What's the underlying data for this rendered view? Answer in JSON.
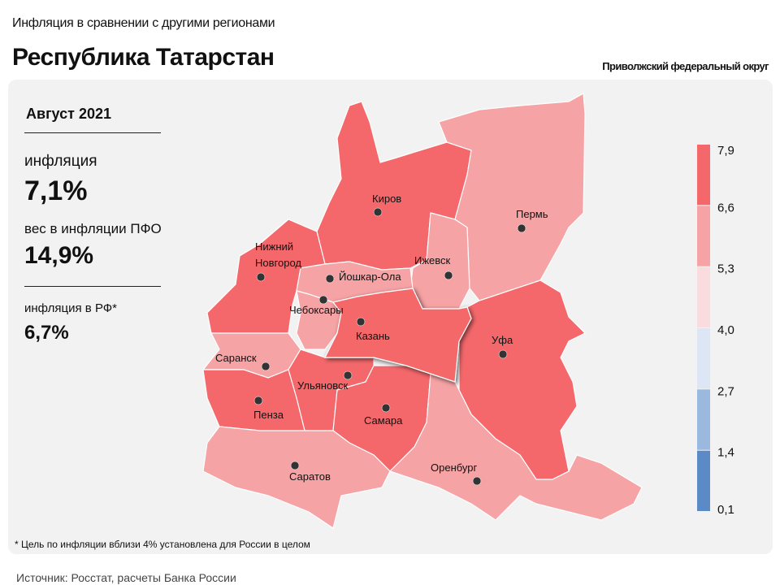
{
  "header": {
    "subtitle": "Инфляция в сравнении с другими регионами",
    "title": "Республика Татарстан",
    "district": "Приволжский федеральный округ"
  },
  "panel": {
    "month": "Август 2021",
    "inflation_label": "инфляция",
    "inflation_value": "7,1%",
    "weight_label": "вес в инфляции ПФО",
    "weight_value": "14,9%",
    "rf_label": "инфляция в РФ*",
    "rf_value": "6,7%"
  },
  "footnote": "* Цель по инфляции вблизи 4% установлена для России в целом",
  "source": "Источник: Росстат, расчеты Банка России",
  "legend": {
    "ticks": [
      "7,9",
      "6,6",
      "5,3",
      "4,0",
      "2,7",
      "1,4",
      "0,1"
    ],
    "colors": [
      "#f4686b",
      "#f6a3a5",
      "#fadcdf",
      "#dce6f4",
      "#9bb8de",
      "#5b8ac6"
    ]
  },
  "map": {
    "highlighted": "Казань",
    "regions": [
      {
        "city": "Киров",
        "color": "#f4686b"
      },
      {
        "city": "Пермь",
        "color": "#f6a3a5"
      },
      {
        "city": "Ижевск",
        "color": "#f6a3a5"
      },
      {
        "city": "Нижний Новгород",
        "color": "#f4686b"
      },
      {
        "city": "Йошкар-Ола",
        "color": "#f6a3a5"
      },
      {
        "city": "Чебоксары",
        "color": "#f6a3a5"
      },
      {
        "city": "Казань",
        "color": "#f4686b"
      },
      {
        "city": "Уфа",
        "color": "#f4686b"
      },
      {
        "city": "Саранск",
        "color": "#f6a3a5"
      },
      {
        "city": "Ульяновск",
        "color": "#f4686b"
      },
      {
        "city": "Пенза",
        "color": "#f4686b"
      },
      {
        "city": "Самара",
        "color": "#f4686b"
      },
      {
        "city": "Саратов",
        "color": "#f6a3a5"
      },
      {
        "city": "Оренбург",
        "color": "#f6a3a5"
      }
    ]
  }
}
